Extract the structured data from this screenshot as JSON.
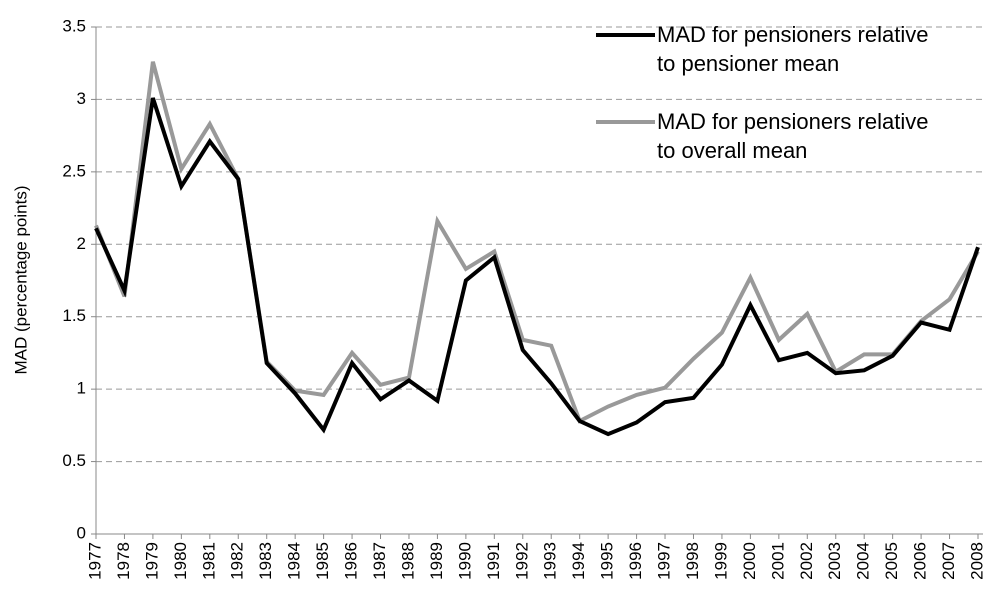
{
  "chart_data": {
    "type": "line",
    "y_label": "MAD (percentage points)",
    "categories": [
      "1977",
      "1978",
      "1979",
      "1980",
      "1981",
      "1982",
      "1983",
      "1984",
      "1985",
      "1986",
      "1987",
      "1988",
      "1989",
      "1990",
      "1991",
      "1992",
      "1993",
      "1994",
      "1995",
      "1996",
      "1997",
      "1998",
      "1999",
      "2000",
      "2001",
      "2002",
      "2003",
      "2004",
      "2005",
      "2006",
      "2007",
      "2008"
    ],
    "series": [
      {
        "name": "MAD for pensioners relative to pensioner mean",
        "color": "#000000",
        "values": [
          2.11,
          1.68,
          3.01,
          2.4,
          2.71,
          2.45,
          1.18,
          0.97,
          0.72,
          1.18,
          0.93,
          1.06,
          0.92,
          1.75,
          1.91,
          1.27,
          1.04,
          0.78,
          0.69,
          0.77,
          0.91,
          0.94,
          1.17,
          1.58,
          1.2,
          1.25,
          1.11,
          1.13,
          1.23,
          1.46,
          1.41,
          1.98
        ]
      },
      {
        "name": "MAD for pensioners relative to overall mean",
        "color": "#999999",
        "values": [
          2.13,
          1.64,
          3.26,
          2.52,
          2.83,
          2.45,
          1.19,
          0.99,
          0.96,
          1.25,
          1.03,
          1.08,
          2.16,
          1.83,
          1.95,
          1.34,
          1.3,
          0.78,
          0.88,
          0.96,
          1.01,
          1.21,
          1.39,
          1.77,
          1.34,
          1.52,
          1.12,
          1.24,
          1.24,
          1.47,
          1.62,
          1.95
        ]
      }
    ],
    "ylim": [
      0,
      3.5
    ],
    "yticks": [
      0,
      0.5,
      1,
      1.5,
      2,
      2.5,
      3,
      3.5
    ],
    "grid": true,
    "legend": "top-right"
  }
}
